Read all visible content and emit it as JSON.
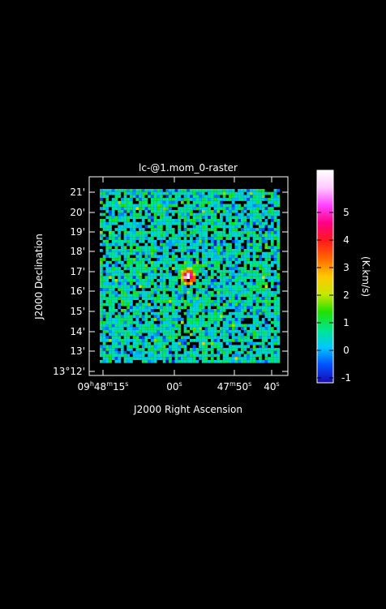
{
  "chart_data": {
    "type": "heatmap",
    "title": "lc-@1.mom_0-raster",
    "xlabel": "J2000 Right Ascension",
    "ylabel": "J2000 Declination",
    "colorbar_label": "(K.km/s)",
    "x_ticks": [
      {
        "label": "09h48m15s",
        "parts": [
          [
            "09",
            ""
          ],
          [
            "h",
            "sup"
          ],
          [
            "48",
            ""
          ],
          [
            "m",
            "sup"
          ],
          [
            "15",
            ""
          ],
          [
            "s",
            "sup"
          ]
        ]
      },
      {
        "label": "00s",
        "parts": [
          [
            "00",
            ""
          ],
          [
            "s",
            "sup"
          ]
        ]
      },
      {
        "label": "47m50s",
        "parts": [
          [
            "47",
            ""
          ],
          [
            "m",
            "sup"
          ],
          [
            "50",
            ""
          ],
          [
            "s",
            "sup"
          ]
        ]
      },
      {
        "label": "40s",
        "parts": [
          [
            "40",
            ""
          ],
          [
            "s",
            "sup"
          ]
        ]
      }
    ],
    "y_ticks": [
      "13°12'",
      "13'",
      "14'",
      "15'",
      "16'",
      "17'",
      "18'",
      "19'",
      "20'",
      "21'"
    ],
    "colorbar_ticks": [
      "-1",
      "0",
      "1",
      "2",
      "3",
      "4",
      "5"
    ],
    "value_range": [
      -1.2,
      5.5
    ],
    "colormap": [
      "#1a0ab0",
      "#0050ff",
      "#00c8ff",
      "#00e68c",
      "#20e000",
      "#c8e800",
      "#ffc800",
      "#ff6a00",
      "#ff1a1a",
      "#ff0080",
      "#ff40ff",
      "#ffc8ff",
      "#ffffff"
    ],
    "source_peak_value": 5.5,
    "noise_level": 0.5,
    "grid": false
  }
}
